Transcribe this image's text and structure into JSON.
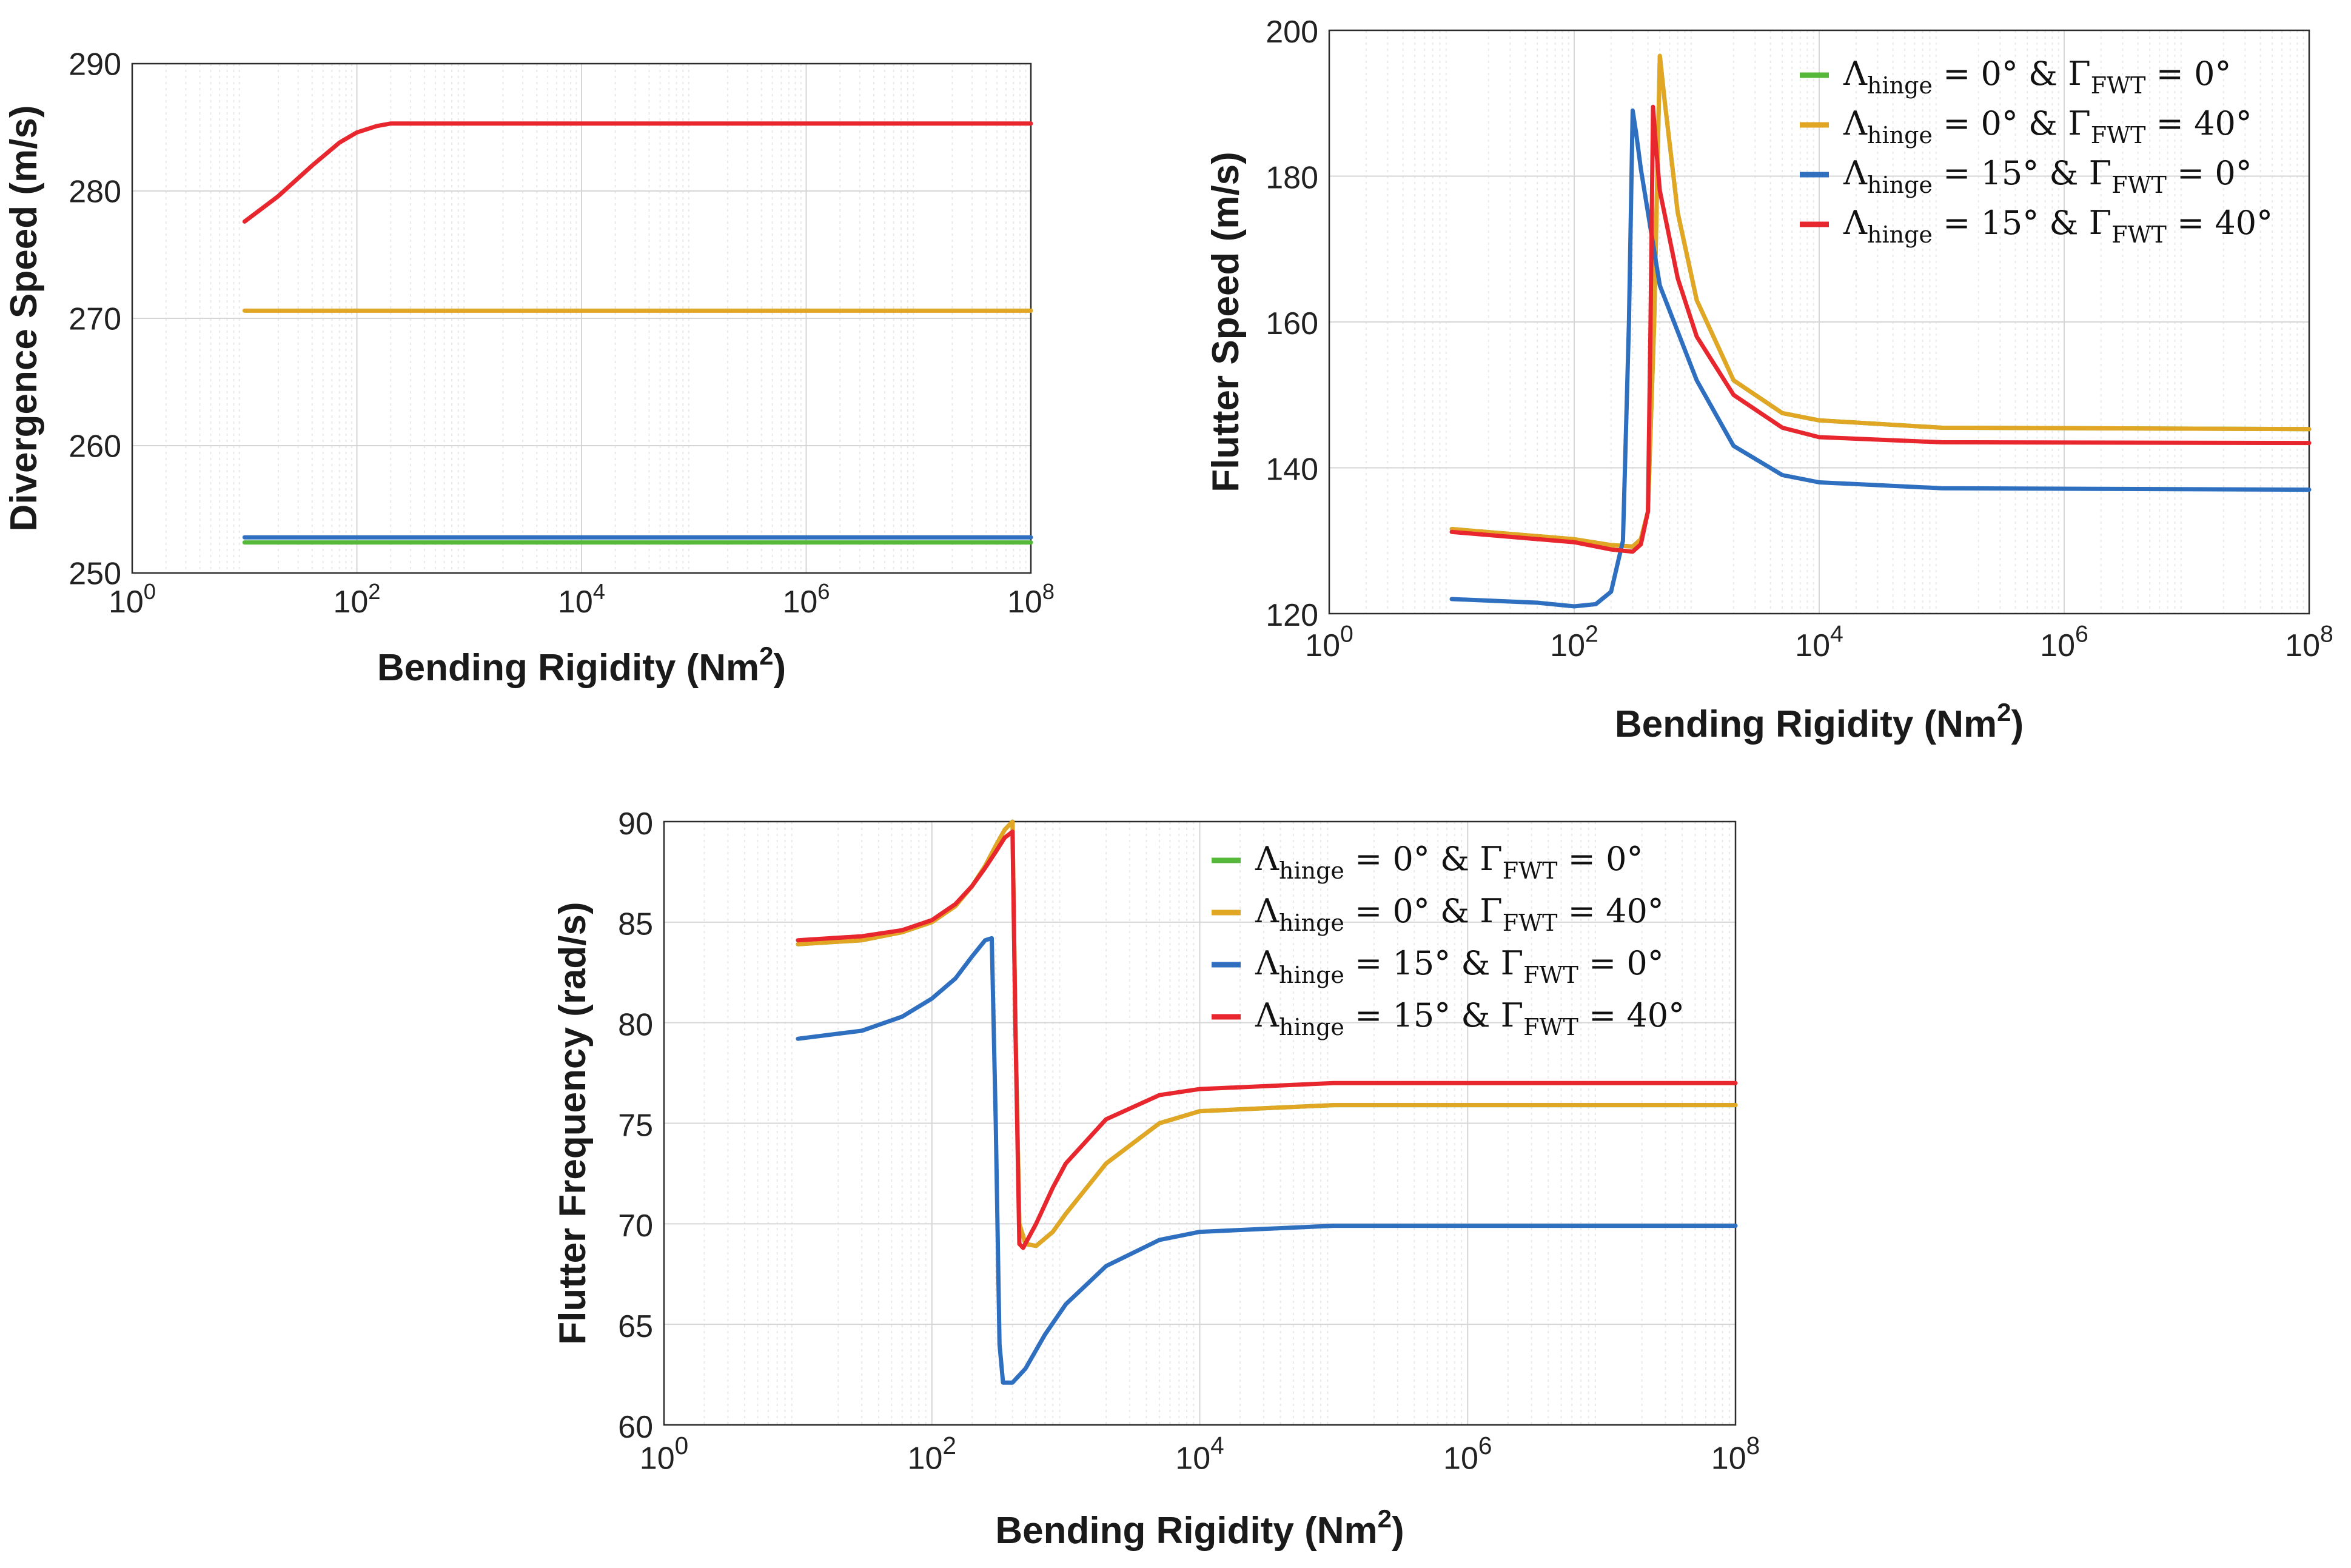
{
  "chart_data": [
    {
      "type": "line",
      "ylabel": "Divergence Speed (m/s)",
      "xlabel": "Bending Rigidity (Nm",
      "xlabel_sup": "2",
      "xlabel_close": ")",
      "xscale": "log",
      "xlim": [
        1,
        100000000
      ],
      "ylim": [
        250,
        290
      ],
      "xticks": [
        "0",
        "2",
        "4",
        "6",
        "8"
      ],
      "xtick_base": "10",
      "yticks": [
        "250",
        "260",
        "270",
        "280",
        "290"
      ],
      "grid": true,
      "legend": null,
      "series": [
        {
          "color": "#e8262d",
          "x": [
            10,
            20,
            40,
            70,
            100,
            150,
            200,
            300,
            1000,
            100000000
          ],
          "y": [
            277.6,
            279.6,
            282.0,
            283.8,
            284.6,
            285.1,
            285.3,
            285.3,
            285.3,
            285.3
          ]
        },
        {
          "color": "#e0a624",
          "x": [
            10,
            100000000
          ],
          "y": [
            270.6,
            270.6
          ]
        },
        {
          "color": "#2e6fc0",
          "x": [
            10,
            100000000
          ],
          "y": [
            252.8,
            252.8
          ]
        },
        {
          "color": "#55b83a",
          "x": [
            10,
            100000000
          ],
          "y": [
            252.4,
            252.4
          ]
        }
      ]
    },
    {
      "type": "line",
      "ylabel": "Flutter Speed (m/s)",
      "xlabel": "Bending Rigidity (Nm",
      "xlabel_sup": "2",
      "xlabel_close": ")",
      "xscale": "log",
      "xlim": [
        1,
        100000000
      ],
      "ylim": [
        120,
        200
      ],
      "xticks": [
        "0",
        "2",
        "4",
        "6",
        "8"
      ],
      "xtick_base": "10",
      "yticks": [
        "120",
        "140",
        "160",
        "180",
        "200"
      ],
      "grid": true,
      "legend_position": "top-right",
      "series": [
        {
          "color": "#55b83a",
          "x": [
            10,
            100,
            200,
            300,
            350,
            400,
            450,
            500,
            550,
            700,
            1000,
            2000,
            5000,
            10000,
            100000,
            100000000
          ],
          "y": [
            131.6,
            130.2,
            129.4,
            129.2,
            130.2,
            134,
            160,
            196.5,
            190,
            175,
            163,
            152,
            147.5,
            146.5,
            145.5,
            145.3
          ]
        },
        {
          "color": "#e0a624",
          "x": [
            10,
            100,
            200,
            300,
            350,
            400,
            450,
            500,
            550,
            700,
            1000,
            2000,
            5000,
            10000,
            100000,
            100000000
          ],
          "y": [
            131.6,
            130.2,
            129.4,
            129.2,
            130.2,
            134,
            160,
            196.5,
            190,
            175,
            163,
            152,
            147.5,
            146.5,
            145.5,
            145.3
          ]
        },
        {
          "color": "#2e6fc0",
          "x": [
            10,
            50,
            100,
            150,
            200,
            250,
            280,
            300,
            320,
            350,
            500,
            1000,
            2000,
            5000,
            10000,
            100000,
            100000000
          ],
          "y": [
            122,
            121.5,
            121,
            121.3,
            123,
            130,
            160,
            189,
            186,
            181,
            165,
            152,
            143,
            139,
            138,
            137.2,
            137
          ]
        },
        {
          "color": "#e8262d",
          "x": [
            10,
            100,
            200,
            300,
            350,
            400,
            420,
            440,
            460,
            500,
            700,
            1000,
            2000,
            5000,
            10000,
            100000,
            100000000
          ],
          "y": [
            131.2,
            129.8,
            128.8,
            128.5,
            129.5,
            134,
            160,
            189.5,
            185,
            178,
            166,
            158,
            150,
            145.5,
            144.2,
            143.5,
            143.4
          ]
        }
      ]
    },
    {
      "type": "line",
      "ylabel": "Flutter Frequency (rad/s)",
      "xlabel": "Bending Rigidity (Nm",
      "xlabel_sup": "2",
      "xlabel_close": ")",
      "xscale": "log",
      "xlim": [
        1,
        100000000
      ],
      "ylim": [
        60,
        90
      ],
      "xticks": [
        "0",
        "2",
        "4",
        "6",
        "8"
      ],
      "xtick_base": "10",
      "yticks": [
        "60",
        "65",
        "70",
        "75",
        "80",
        "85",
        "90"
      ],
      "grid": true,
      "legend_position": "top-right",
      "series": [
        {
          "color": "#55b83a",
          "x": [
            10,
            30,
            60,
            100,
            150,
            200,
            250,
            300,
            350,
            400,
            420,
            450,
            500,
            600,
            800,
            1000,
            2000,
            5000,
            10000,
            100000,
            100000000
          ],
          "y": [
            83.9,
            84.1,
            84.5,
            85,
            85.8,
            86.8,
            87.8,
            88.8,
            89.6,
            90,
            80,
            70,
            69,
            68.9,
            69.6,
            70.5,
            73,
            75,
            75.6,
            75.9,
            75.9
          ]
        },
        {
          "color": "#e0a624",
          "x": [
            10,
            30,
            60,
            100,
            150,
            200,
            250,
            300,
            350,
            400,
            420,
            450,
            500,
            600,
            800,
            1000,
            2000,
            5000,
            10000,
            100000,
            100000000
          ],
          "y": [
            83.9,
            84.1,
            84.5,
            85,
            85.8,
            86.8,
            87.8,
            88.8,
            89.6,
            90,
            80,
            70,
            69,
            68.9,
            69.6,
            70.5,
            73,
            75,
            75.6,
            75.9,
            75.9
          ]
        },
        {
          "color": "#2e6fc0",
          "x": [
            10,
            30,
            60,
            100,
            150,
            200,
            250,
            280,
            300,
            320,
            340,
            400,
            500,
            700,
            1000,
            2000,
            5000,
            10000,
            100000,
            100000000
          ],
          "y": [
            79.2,
            79.6,
            80.3,
            81.2,
            82.2,
            83.3,
            84.1,
            84.2,
            75,
            64,
            62.1,
            62.1,
            62.8,
            64.5,
            66,
            67.9,
            69.2,
            69.6,
            69.9,
            69.9
          ]
        },
        {
          "color": "#e8262d",
          "x": [
            10,
            30,
            60,
            100,
            150,
            200,
            250,
            300,
            350,
            400,
            420,
            450,
            480,
            600,
            800,
            1000,
            2000,
            5000,
            10000,
            100000,
            100000000
          ],
          "y": [
            84.1,
            84.3,
            84.6,
            85.1,
            85.9,
            86.8,
            87.7,
            88.5,
            89.2,
            89.5,
            80,
            69,
            68.8,
            70,
            71.8,
            73,
            75.2,
            76.4,
            76.7,
            77,
            77
          ]
        }
      ],
      "legend_entries_ref": "legend"
    }
  ],
  "legend": {
    "entries": [
      {
        "color": "#55b83a",
        "lambda": "Λ",
        "lambda_sub": "hinge",
        "lambda_val": " = 0°  & ",
        "gamma": "Γ",
        "gamma_sub": "FWT",
        "gamma_val": " = 0°"
      },
      {
        "color": "#e0a624",
        "lambda": "Λ",
        "lambda_sub": "hinge",
        "lambda_val": " = 0°  & ",
        "gamma": "Γ",
        "gamma_sub": "FWT",
        "gamma_val": " = 40°"
      },
      {
        "color": "#2e6fc0",
        "lambda": "Λ",
        "lambda_sub": "hinge",
        "lambda_val": " = 15° & ",
        "gamma": "Γ",
        "gamma_sub": "FWT",
        "gamma_val": " = 0°"
      },
      {
        "color": "#e8262d",
        "lambda": "Λ",
        "lambda_sub": "hinge",
        "lambda_val": " = 15° & ",
        "gamma": "Γ",
        "gamma_sub": "FWT",
        "gamma_val": " = 40°"
      }
    ]
  }
}
